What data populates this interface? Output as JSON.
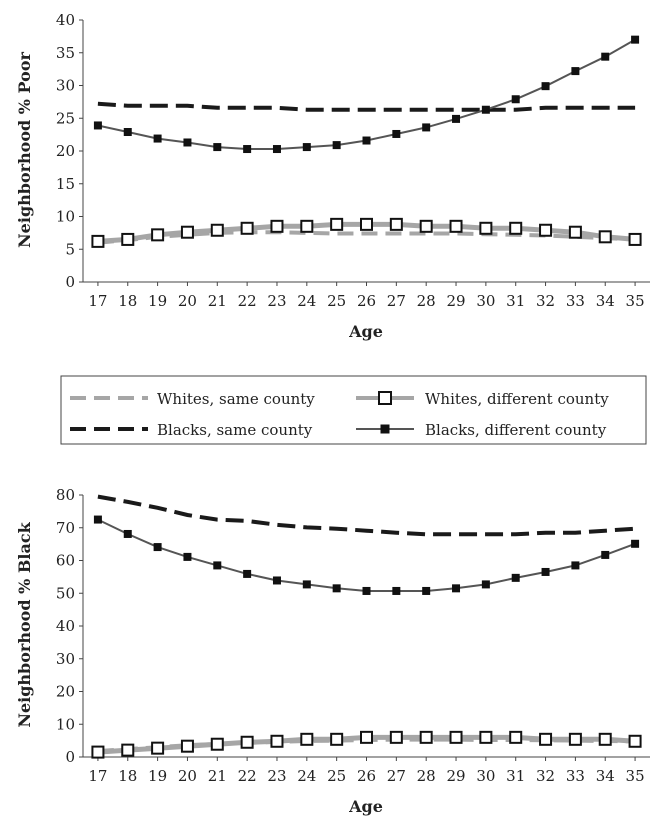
{
  "legend": {
    "entries": [
      {
        "key": "whites_same",
        "label": "Whites, same county",
        "color": "#a6a6a6",
        "style": "dashed"
      },
      {
        "key": "whites_diff",
        "label": "Whites, different county",
        "color": "#a6a6a6",
        "style": "solid-square-open"
      },
      {
        "key": "blacks_same",
        "label": "Blacks, same county",
        "color": "#1a1a1a",
        "style": "dashed"
      },
      {
        "key": "blacks_diff",
        "label": "Blacks, different county",
        "color": "#555555",
        "style": "solid-square-filled"
      }
    ]
  },
  "chart_data": [
    {
      "type": "line",
      "title": "",
      "xlabel": "Age",
      "ylabel": "Neighborhood % Poor",
      "ylim": [
        0,
        40
      ],
      "yticks": [
        0,
        5,
        10,
        15,
        20,
        25,
        30,
        35,
        40
      ],
      "x": [
        17,
        18,
        19,
        20,
        21,
        22,
        23,
        24,
        25,
        26,
        27,
        28,
        29,
        30,
        31,
        32,
        33,
        34,
        35
      ],
      "series": [
        {
          "key": "whites_same",
          "name": "Whites, same county",
          "values": [
            6.0,
            6.4,
            6.9,
            7.2,
            7.5,
            7.6,
            7.6,
            7.5,
            7.4,
            7.4,
            7.4,
            7.4,
            7.4,
            7.3,
            7.2,
            7.1,
            6.9,
            6.7,
            6.5
          ]
        },
        {
          "key": "whites_diff",
          "name": "Whites, different county",
          "values": [
            6.2,
            6.5,
            7.2,
            7.6,
            7.9,
            8.2,
            8.5,
            8.5,
            8.8,
            8.8,
            8.8,
            8.5,
            8.5,
            8.2,
            8.2,
            7.9,
            7.6,
            6.9,
            6.5
          ]
        },
        {
          "key": "blacks_same",
          "name": "Blacks, same county",
          "values": [
            27.2,
            26.9,
            26.9,
            26.9,
            26.6,
            26.6,
            26.6,
            26.3,
            26.3,
            26.3,
            26.3,
            26.3,
            26.3,
            26.3,
            26.3,
            26.6,
            26.6,
            26.6,
            26.6
          ]
        },
        {
          "key": "blacks_diff",
          "name": "Blacks, different county",
          "values": [
            23.9,
            22.9,
            21.9,
            21.3,
            20.6,
            20.3,
            20.3,
            20.6,
            20.9,
            21.6,
            22.6,
            23.6,
            24.9,
            26.3,
            27.9,
            29.9,
            32.2,
            34.4,
            37.0
          ]
        }
      ]
    },
    {
      "type": "line",
      "title": "",
      "xlabel": "Age",
      "ylabel": "Neighborhood % Black",
      "ylim": [
        0,
        80
      ],
      "yticks": [
        0,
        10,
        20,
        30,
        40,
        50,
        60,
        70,
        80
      ],
      "x": [
        17,
        18,
        19,
        20,
        21,
        22,
        23,
        24,
        25,
        26,
        27,
        28,
        29,
        30,
        31,
        32,
        33,
        34,
        35
      ],
      "series": [
        {
          "key": "whites_same",
          "name": "Whites, same county",
          "values": [
            1.8,
            2.4,
            3.0,
            3.6,
            4.0,
            4.3,
            4.6,
            4.9,
            5.0,
            5.2,
            5.3,
            5.3,
            5.3,
            5.2,
            5.2,
            5.1,
            5.0,
            4.9,
            4.8
          ]
        },
        {
          "key": "whites_diff",
          "name": "Whites, different county",
          "values": [
            1.5,
            2.1,
            2.7,
            3.3,
            3.9,
            4.5,
            4.8,
            5.4,
            5.4,
            6.0,
            6.0,
            6.0,
            6.0,
            6.0,
            6.0,
            5.4,
            5.4,
            5.4,
            4.8
          ]
        },
        {
          "key": "blacks_same",
          "name": "Blacks, same county",
          "values": [
            79.5,
            77.9,
            76.1,
            73.9,
            72.5,
            72.1,
            70.9,
            70.1,
            69.7,
            69.1,
            68.5,
            68.0,
            68.0,
            68.0,
            68.0,
            68.5,
            68.5,
            69.1,
            69.7
          ]
        },
        {
          "key": "blacks_diff",
          "name": "Blacks, different county",
          "values": [
            72.5,
            68.1,
            64.1,
            61.1,
            58.5,
            55.9,
            53.9,
            52.7,
            51.5,
            50.7,
            50.7,
            50.7,
            51.5,
            52.7,
            54.7,
            56.5,
            58.5,
            61.7,
            65.1
          ]
        }
      ]
    }
  ]
}
